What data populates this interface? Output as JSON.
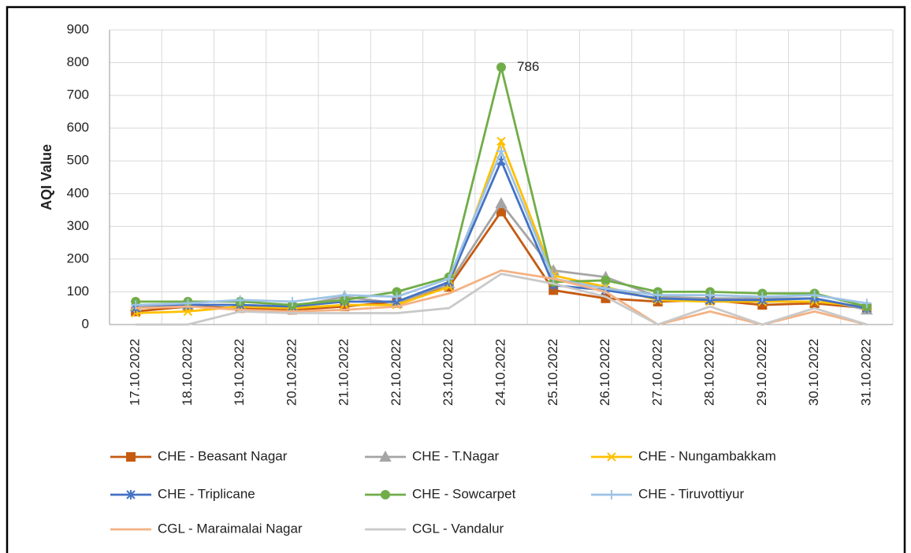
{
  "chart_data": {
    "type": "line",
    "ylabel": "AQI Value",
    "categories": [
      "17.10.2022",
      "18.10.2022",
      "19.10.2022",
      "20.10.2022",
      "21.10.2022",
      "22.10.2022",
      "23.10.2022",
      "24.10.2022",
      "25.10.2022",
      "26.10.2022",
      "27.10.2022",
      "28.10.2022",
      "29.10.2022",
      "30.10.2022",
      "31.10.2022"
    ],
    "series": [
      {
        "name": "CHE - Beasant Nagar",
        "color": "#c55a11",
        "marker": "square",
        "values": [
          40,
          55,
          50,
          45,
          55,
          70,
          115,
          345,
          105,
          80,
          70,
          75,
          60,
          65,
          50
        ]
      },
      {
        "name": "CHE - T.Nagar",
        "color": "#a5a5a5",
        "marker": "triangle",
        "values": [
          55,
          60,
          60,
          55,
          85,
          65,
          125,
          370,
          165,
          145,
          85,
          80,
          80,
          80,
          45
        ]
      },
      {
        "name": "CHE - Nungambakkam",
        "color": "#ffc000",
        "marker": "x",
        "values": [
          35,
          40,
          55,
          50,
          60,
          60,
          115,
          560,
          150,
          115,
          75,
          70,
          70,
          70,
          55
        ]
      },
      {
        "name": "CHE - Triplicane",
        "color": "#4472c4",
        "marker": "asterisk",
        "values": [
          50,
          60,
          60,
          55,
          70,
          70,
          130,
          500,
          120,
          105,
          80,
          75,
          75,
          80,
          50
        ]
      },
      {
        "name": "CHE - Sowcarpet",
        "color": "#70ad47",
        "marker": "circle",
        "values": [
          70,
          70,
          70,
          60,
          75,
          100,
          145,
          786,
          130,
          135,
          100,
          100,
          95,
          95,
          55
        ]
      },
      {
        "name": "CHE - Tiruvottiyur",
        "color": "#9dc3e6",
        "marker": "plus",
        "values": [
          60,
          65,
          75,
          70,
          90,
          85,
          140,
          530,
          140,
          110,
          90,
          90,
          85,
          90,
          65
        ]
      },
      {
        "name": "CGL - Maraimalai Nagar",
        "color": "#f4b183",
        "marker": "none",
        "values": [
          50,
          55,
          45,
          40,
          45,
          55,
          95,
          165,
          140,
          100,
          0,
          40,
          0,
          40,
          0
        ]
      },
      {
        "name": "CGL - Vandalur",
        "color": "#c9c9c9",
        "marker": "none",
        "values": [
          0,
          0,
          40,
          35,
          35,
          35,
          50,
          155,
          125,
          85,
          0,
          55,
          0,
          50,
          0
        ]
      }
    ],
    "annotation": {
      "series": 4,
      "index": 7,
      "text": "786"
    },
    "ylim": [
      0,
      900
    ],
    "yticks": [
      0,
      100,
      200,
      300,
      400,
      500,
      600,
      700,
      800,
      900
    ],
    "grid": true
  }
}
